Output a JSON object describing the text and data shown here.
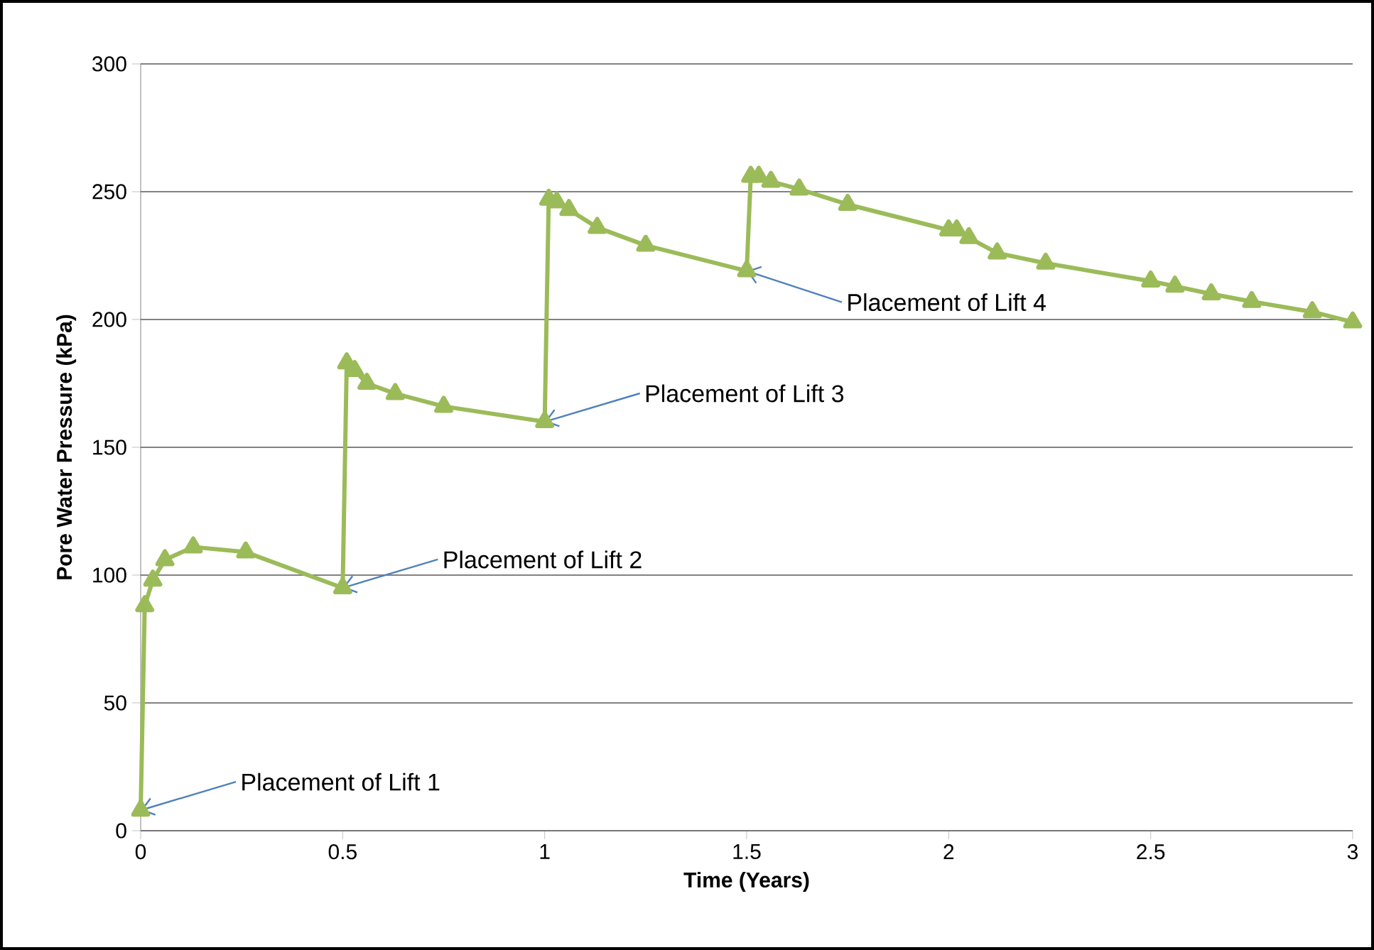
{
  "chart_data": {
    "type": "line",
    "xlabel": "Time (Years)",
    "ylabel": "Pore Water Pressure (kPa)",
    "xlim": [
      0,
      3
    ],
    "xticks": [
      0,
      0.5,
      1,
      1.5,
      2,
      2.5,
      3
    ],
    "ylim": [
      0,
      300
    ],
    "yticks": [
      0,
      50,
      100,
      150,
      200,
      250,
      300
    ],
    "grid": "y",
    "marker": "triangle",
    "line_style": "solid",
    "series": [
      {
        "color": "#9bbb59",
        "x": [
          0,
          0.01,
          0.03,
          0.06,
          0.13,
          0.26,
          0.5,
          0.51,
          0.53,
          0.56,
          0.63,
          0.75,
          1.0,
          1.01,
          1.03,
          1.06,
          1.13,
          1.25,
          1.5,
          1.51,
          1.53,
          1.56,
          1.63,
          1.75,
          2.0,
          2.02,
          2.05,
          2.12,
          2.24,
          2.5,
          2.56,
          2.65,
          2.75,
          2.9,
          3.0
        ],
        "values": [
          8,
          88,
          98,
          106,
          111,
          109,
          95,
          183,
          180,
          175,
          171,
          166,
          160,
          247,
          246,
          243,
          236,
          229,
          219,
          256,
          256,
          254,
          251,
          245,
          235,
          235,
          232,
          226,
          222,
          215,
          213,
          210,
          207,
          203,
          199
        ]
      }
    ],
    "annotations": [
      {
        "text": "Placement of Lift 1",
        "x": 0,
        "y": 8
      },
      {
        "text": "Placement of Lift 2",
        "x": 0.5,
        "y": 95
      },
      {
        "text": "Placement of Lift 3",
        "x": 1.0,
        "y": 160
      },
      {
        "text": "Placement of Lift 4",
        "x": 1.5,
        "y": 219
      }
    ]
  }
}
